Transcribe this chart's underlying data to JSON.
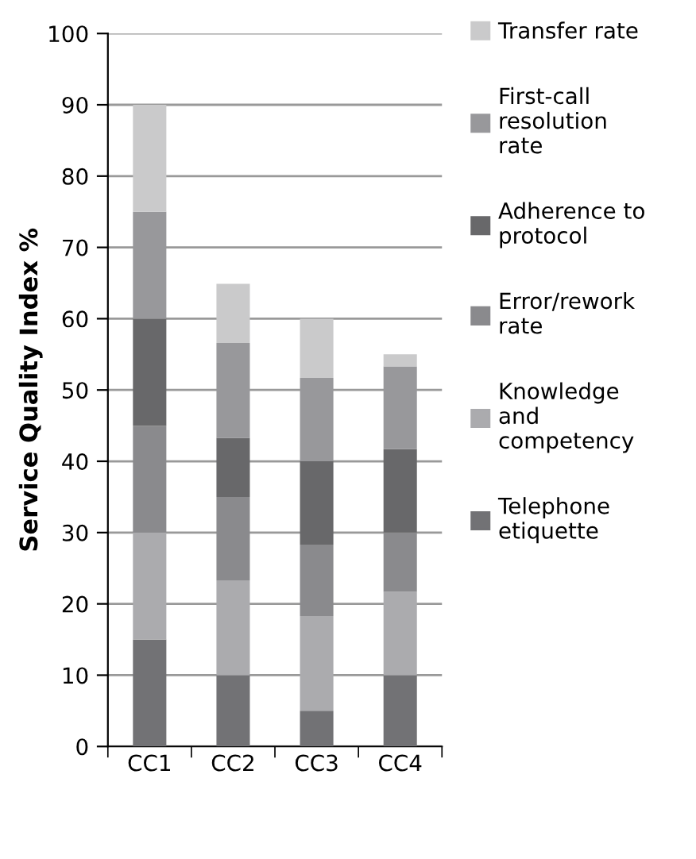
{
  "chart_data": {
    "type": "bar",
    "stacked": true,
    "ylabel": "Service Quality Index %",
    "categories": [
      "CC1",
      "CC2",
      "CC3",
      "CC4"
    ],
    "series": [
      {
        "name": "Telephone\netiquette",
        "color": "#727275",
        "values": [
          15,
          10,
          5,
          10
        ]
      },
      {
        "name": "Knowledge\nand\ncompetency",
        "color": "#ababae",
        "values": [
          15,
          13.3,
          13.3,
          11.7
        ]
      },
      {
        "name": "Error/rework\nrate",
        "color": "#8a8a8d",
        "values": [
          15,
          11.7,
          10,
          8.3
        ]
      },
      {
        "name": "Adherence to\nprotocol",
        "color": "#68686a",
        "values": [
          15,
          8.3,
          11.7,
          11.7
        ]
      },
      {
        "name": "First-call\nresolution\nrate",
        "color": "#98989b",
        "values": [
          15,
          13.3,
          11.7,
          11.6
        ]
      },
      {
        "name": "Transfer rate",
        "color": "#cacacb",
        "values": [
          15,
          8.3,
          8.3,
          1.7
        ]
      }
    ],
    "ylim": [
      0,
      100
    ],
    "yticks": [
      0,
      10,
      20,
      30,
      40,
      50,
      60,
      70,
      80,
      90,
      100
    ],
    "grid": "y",
    "legend": "right"
  }
}
